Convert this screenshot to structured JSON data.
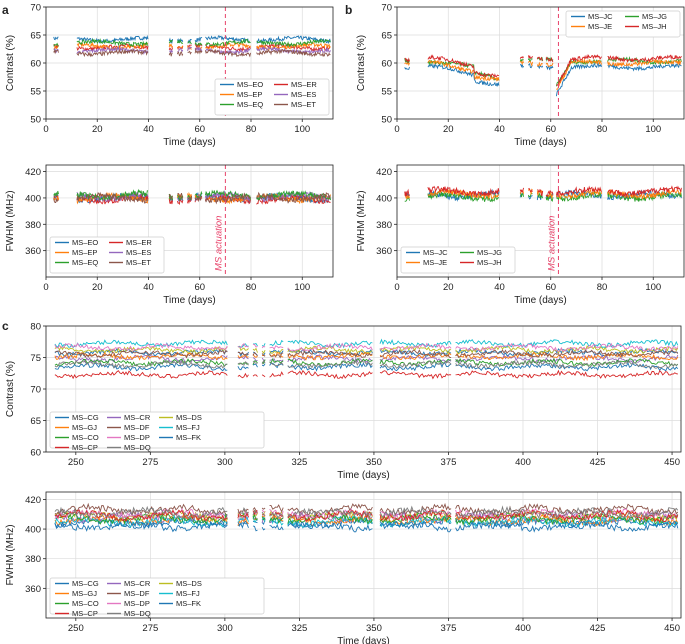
{
  "colors": {
    "blue": "#1f77b4",
    "orange": "#ff7f0e",
    "green": "#2ca02c",
    "red": "#d62728",
    "purple": "#9467bd",
    "brown": "#8c564b",
    "pink": "#e377c2",
    "gray": "#7f7f7f",
    "olive": "#bcbd22",
    "cyan": "#17becf",
    "actuation": "#e8436a"
  },
  "panel_labels": [
    "a",
    "b",
    "c"
  ],
  "chart_data": [
    {
      "id": "a-contrast",
      "panel": "a",
      "type": "line",
      "xlabel": "Time (days)",
      "ylabel": "Contrast (%)",
      "xlim": [
        0,
        112
      ],
      "ylim": [
        50,
        70
      ],
      "xticks": [
        0,
        20,
        40,
        60,
        80,
        100
      ],
      "yticks": [
        50,
        55,
        60,
        65,
        70
      ],
      "legend_loc": "lower-right",
      "legend_cols": 2,
      "series": [
        {
          "name": "MS–EO",
          "color": "blue",
          "level": 64.2
        },
        {
          "name": "MS–ER",
          "color": "red",
          "level": 62.8
        },
        {
          "name": "MS–EP",
          "color": "orange",
          "level": 63.0
        },
        {
          "name": "MS–ES",
          "color": "purple",
          "level": 62.2
        },
        {
          "name": "MS–EQ",
          "color": "green",
          "level": 63.6
        },
        {
          "name": "MS–ET",
          "color": "brown",
          "level": 61.8
        }
      ],
      "gaps": [
        [
          5,
          12
        ],
        [
          40,
          48
        ],
        [
          49.5,
          51
        ],
        [
          53.5,
          55
        ],
        [
          57,
          58
        ],
        [
          61,
          62
        ],
        [
          80,
          82
        ]
      ],
      "actuation_day": 70
    },
    {
      "id": "b-contrast",
      "panel": "b",
      "type": "line",
      "xlabel": "Time (days)",
      "ylabel": "Contrast (%)",
      "xlim": [
        0,
        112
      ],
      "ylim": [
        50,
        70
      ],
      "xticks": [
        0,
        20,
        40,
        60,
        80,
        100
      ],
      "yticks": [
        50,
        55,
        60,
        65,
        70
      ],
      "legend_loc": "upper-right",
      "legend_cols": 2,
      "series": [
        {
          "name": "MS–JC",
          "color": "blue",
          "level": 59.3
        },
        {
          "name": "MS–JG",
          "color": "green",
          "level": 60.4
        },
        {
          "name": "MS–JE",
          "color": "orange",
          "level": 60.0
        },
        {
          "name": "MS–JH",
          "color": "red",
          "level": 60.8
        }
      ],
      "gaps": [
        [
          5,
          12
        ],
        [
          40,
          48
        ],
        [
          49.5,
          51
        ],
        [
          53,
          54.5
        ],
        [
          57,
          58
        ],
        [
          61,
          62
        ],
        [
          80,
          82
        ]
      ],
      "actuation_day": 63
    },
    {
      "id": "a-fwhm",
      "panel": "a",
      "type": "line",
      "xlabel": "Time (days)",
      "ylabel": "FWHM (MHz)",
      "xlim": [
        0,
        112
      ],
      "ylim": [
        340,
        425
      ],
      "xticks": [
        0,
        20,
        40,
        60,
        80,
        100
      ],
      "yticks": [
        360,
        380,
        400,
        420
      ],
      "legend_loc": "lower-left",
      "legend_cols": 2,
      "series": [
        {
          "name": "MS–EO",
          "color": "blue",
          "level": 400
        },
        {
          "name": "MS–ER",
          "color": "red",
          "level": 399
        },
        {
          "name": "MS–EP",
          "color": "orange",
          "level": 400
        },
        {
          "name": "MS–ES",
          "color": "purple",
          "level": 401
        },
        {
          "name": "MS–EQ",
          "color": "green",
          "level": 402
        },
        {
          "name": "MS–ET",
          "color": "brown",
          "level": 400
        }
      ],
      "gaps": [
        [
          5,
          12
        ],
        [
          40,
          48
        ],
        [
          49.5,
          51
        ],
        [
          53.5,
          55
        ],
        [
          57,
          58
        ],
        [
          61,
          62
        ],
        [
          80,
          82
        ]
      ],
      "actuation_day": 70,
      "annotation": "MS actuation"
    },
    {
      "id": "b-fwhm",
      "panel": "b",
      "type": "line",
      "xlabel": "Time (days)",
      "ylabel": "FWHM (MHz)",
      "xlim": [
        0,
        112
      ],
      "ylim": [
        340,
        425
      ],
      "xticks": [
        0,
        20,
        40,
        60,
        80,
        100
      ],
      "yticks": [
        360,
        380,
        400,
        420
      ],
      "legend_loc": "lower-left",
      "legend_cols": 2,
      "series": [
        {
          "name": "MS–JC",
          "color": "blue",
          "level": 402
        },
        {
          "name": "MS–JG",
          "color": "green",
          "level": 401
        },
        {
          "name": "MS–JE",
          "color": "orange",
          "level": 403
        },
        {
          "name": "MS–JH",
          "color": "red",
          "level": 405
        }
      ],
      "gaps": [
        [
          5,
          12
        ],
        [
          40,
          48
        ],
        [
          49.5,
          51
        ],
        [
          53,
          54.5
        ],
        [
          57,
          58
        ],
        [
          61,
          62
        ],
        [
          80,
          82
        ]
      ],
      "actuation_day": 63,
      "annotation": "MS actuation"
    },
    {
      "id": "c-contrast",
      "panel": "c",
      "type": "line",
      "xlabel": "Time (days)",
      "ylabel": "Contrast (%)",
      "xlim": [
        240,
        453
      ],
      "ylim": [
        60,
        80
      ],
      "xticks": [
        250,
        275,
        300,
        325,
        350,
        375,
        400,
        425,
        450
      ],
      "yticks": [
        60,
        65,
        70,
        75,
        80
      ],
      "legend_loc": "lower-left",
      "legend_cols": 4,
      "series": [
        {
          "name": "MS–CG",
          "color": "blue",
          "level": 75.8
        },
        {
          "name": "MS–CR",
          "color": "purple",
          "level": 74.8
        },
        {
          "name": "MS–DS",
          "color": "olive",
          "level": 76.2
        },
        {
          "name": "MS–GJ",
          "color": "orange",
          "level": 75.2
        },
        {
          "name": "MS–DF",
          "color": "brown",
          "level": 75.6
        },
        {
          "name": "MS–FJ",
          "color": "cyan",
          "level": 77.2
        },
        {
          "name": "MS–CO",
          "color": "green",
          "level": 74.2
        },
        {
          "name": "MS–DP",
          "color": "pink",
          "level": 76.6
        },
        {
          "name": "MS–FK",
          "color": "blue",
          "level": 73.5
        },
        {
          "name": "MS–CP",
          "color": "red",
          "level": 72.3
        },
        {
          "name": "MS–DQ",
          "color": "gray",
          "level": 73.9
        }
      ],
      "gaps": [
        [
          301,
          304
        ],
        [
          308,
          309
        ],
        [
          311,
          312
        ],
        [
          314,
          315
        ],
        [
          320,
          321
        ],
        [
          350,
          352
        ],
        [
          376,
          377
        ]
      ]
    },
    {
      "id": "c-fwhm",
      "panel": "c",
      "type": "line",
      "xlabel": "Time (days)",
      "ylabel": "FWHM (MHz)",
      "xlim": [
        240,
        453
      ],
      "ylim": [
        340,
        425
      ],
      "xticks": [
        250,
        275,
        300,
        325,
        350,
        375,
        400,
        425,
        450
      ],
      "yticks": [
        360,
        380,
        400,
        420
      ],
      "legend_loc": "lower-left",
      "legend_cols": 4,
      "series": [
        {
          "name": "MS–CG",
          "color": "blue",
          "level": 404
        },
        {
          "name": "MS–CR",
          "color": "purple",
          "level": 408
        },
        {
          "name": "MS–DS",
          "color": "olive",
          "level": 409
        },
        {
          "name": "MS–GJ",
          "color": "orange",
          "level": 406
        },
        {
          "name": "MS–DF",
          "color": "brown",
          "level": 413
        },
        {
          "name": "MS–FJ",
          "color": "cyan",
          "level": 405
        },
        {
          "name": "MS–CO",
          "color": "green",
          "level": 407
        },
        {
          "name": "MS–DP",
          "color": "pink",
          "level": 410
        },
        {
          "name": "MS–FK",
          "color": "blue",
          "level": 402
        },
        {
          "name": "MS–CP",
          "color": "red",
          "level": 409
        },
        {
          "name": "MS–DQ",
          "color": "gray",
          "level": 411
        }
      ],
      "gaps": [
        [
          301,
          304
        ],
        [
          308,
          309
        ],
        [
          311,
          312
        ],
        [
          314,
          315
        ],
        [
          320,
          321
        ],
        [
          350,
          352
        ],
        [
          376,
          377
        ]
      ]
    }
  ]
}
